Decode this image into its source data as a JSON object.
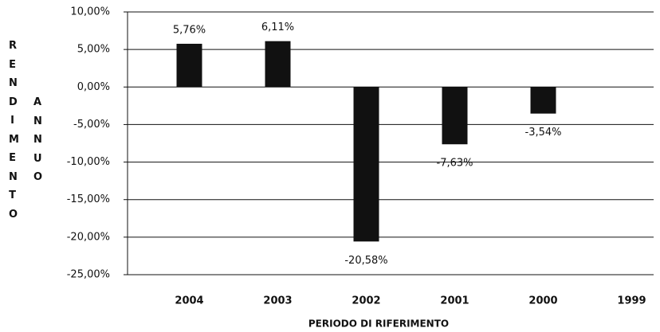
{
  "chart_data": {
    "type": "bar",
    "categories": [
      "2004",
      "2003",
      "2002",
      "2001",
      "2000",
      "1999"
    ],
    "values": [
      5.76,
      6.11,
      -20.58,
      -7.63,
      -3.54,
      null
    ],
    "value_labels": [
      "5,76%",
      "6,11%",
      "-20,58%",
      "-7,63%",
      "-3,54%",
      null
    ],
    "color": "#111111",
    "ylim": [
      -25,
      10
    ],
    "yticks": [
      {
        "value": -25,
        "label": "-25,00%"
      },
      {
        "value": -20,
        "label": "-20,00%"
      },
      {
        "value": -15,
        "label": "-15,00%"
      },
      {
        "value": -10,
        "label": "-10,00%"
      },
      {
        "value": -5,
        "label": "-5,00%"
      },
      {
        "value": 0,
        "label": "0,00%"
      },
      {
        "value": 5,
        "label": "5,00%"
      },
      {
        "value": 10,
        "label": "10,00%"
      }
    ],
    "grid": true,
    "ylabel": [
      "RENDIMENTO",
      "ANNUO"
    ],
    "xlabel": "PERIODO DI RIFERIMENTO"
  }
}
